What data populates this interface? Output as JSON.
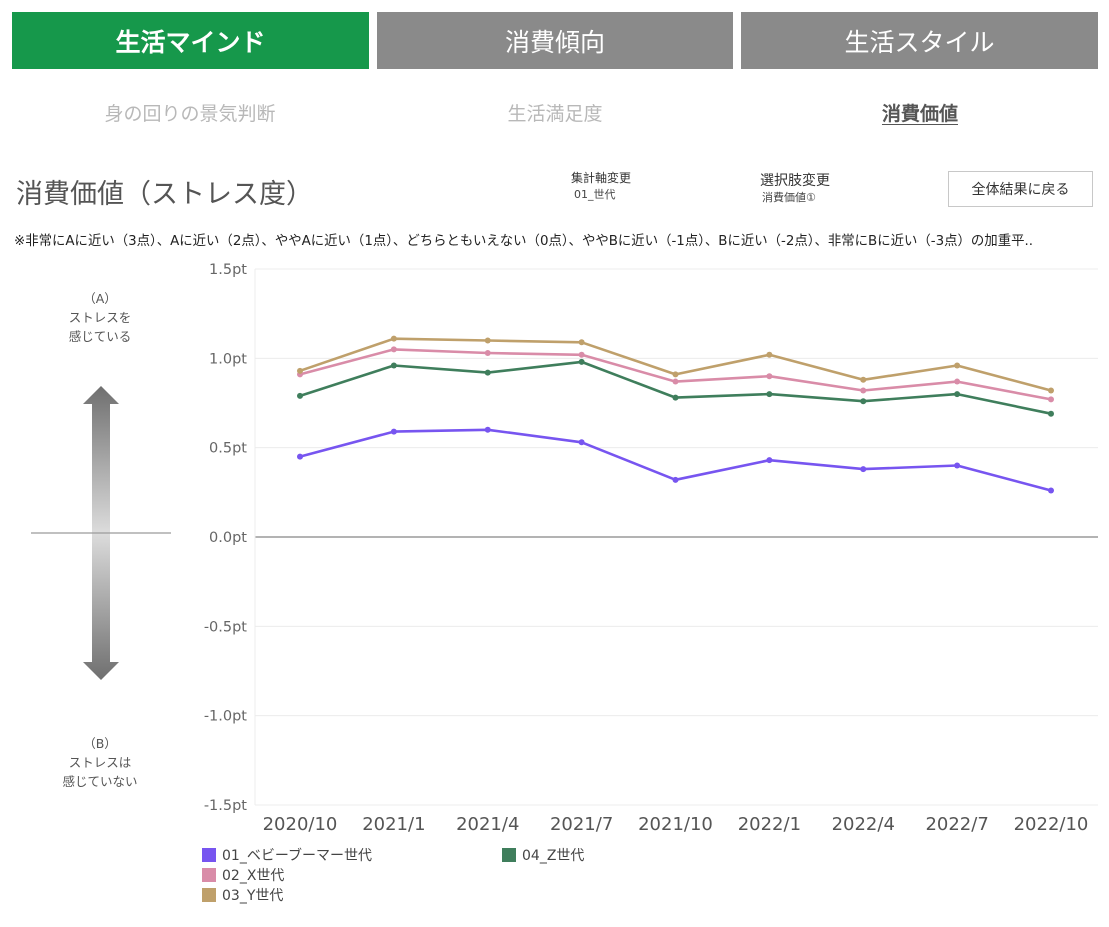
{
  "tabs": [
    {
      "label": "生活マインド",
      "active": true
    },
    {
      "label": "消費傾向",
      "active": false
    },
    {
      "label": "生活スタイル",
      "active": false
    }
  ],
  "subtabs": [
    {
      "label": "身の回りの景気判断",
      "active": false
    },
    {
      "label": "生活満足度",
      "active": false
    },
    {
      "label": "消費価値",
      "active": true
    }
  ],
  "page_title": "消費価値（ストレス度）",
  "controls": {
    "axis_label": "集計軸変更",
    "axis_value": "01_世代",
    "option_label": "選択肢変更",
    "option_value": "消費価値①",
    "reset_label": "全体結果に戻る"
  },
  "note": "※非常にAに近い（3点）、Aに近い（2点）、ややAに近い（1点）、どちらともいえない（0点）、ややBに近い（-1点）、Bに近い（-2点）、非常にBに近い（-3点）の加重平..",
  "side": {
    "top_lines": [
      "（A）",
      "ストレスを",
      "感じている"
    ],
    "bottom_lines": [
      "（B）",
      "ストレスは",
      "感じていない"
    ]
  },
  "colors": {
    "green": "#16984b",
    "gray_tab": "#8a8a8a"
  },
  "chart_data": {
    "type": "line",
    "title": "消費価値（ストレス度）",
    "xlabel": "",
    "ylabel": "",
    "ylim": [
      -1.5,
      1.5
    ],
    "yticks": [
      1.5,
      1.0,
      0.5,
      0.0,
      -0.5,
      -1.0,
      -1.5
    ],
    "ytick_labels": [
      "1.5pt",
      "1.0pt",
      "0.5pt",
      "0.0pt",
      "-0.5pt",
      "-1.0pt",
      "-1.5pt"
    ],
    "categories": [
      "2020/10",
      "2021/1",
      "2021/4",
      "2021/7",
      "2021/10",
      "2022/1",
      "2022/4",
      "2022/7",
      "2022/10"
    ],
    "series": [
      {
        "name": "01_ベビーブーマー世代",
        "color": "#7755f0",
        "values": [
          0.45,
          0.59,
          0.6,
          0.53,
          0.32,
          0.43,
          0.38,
          0.4,
          0.26
        ]
      },
      {
        "name": "02_X世代",
        "color": "#d98ca8",
        "values": [
          0.91,
          1.05,
          1.03,
          1.02,
          0.87,
          0.9,
          0.82,
          0.87,
          0.77
        ]
      },
      {
        "name": "03_Y世代",
        "color": "#bfa06b",
        "values": [
          0.93,
          1.11,
          1.1,
          1.09,
          0.91,
          1.02,
          0.88,
          0.96,
          0.82
        ]
      },
      {
        "name": "04_Z世代",
        "color": "#3f7e5c",
        "values": [
          0.79,
          0.96,
          0.92,
          0.98,
          0.78,
          0.8,
          0.76,
          0.8,
          0.69
        ]
      }
    ],
    "grid": true,
    "legend_position": "bottom-left"
  }
}
